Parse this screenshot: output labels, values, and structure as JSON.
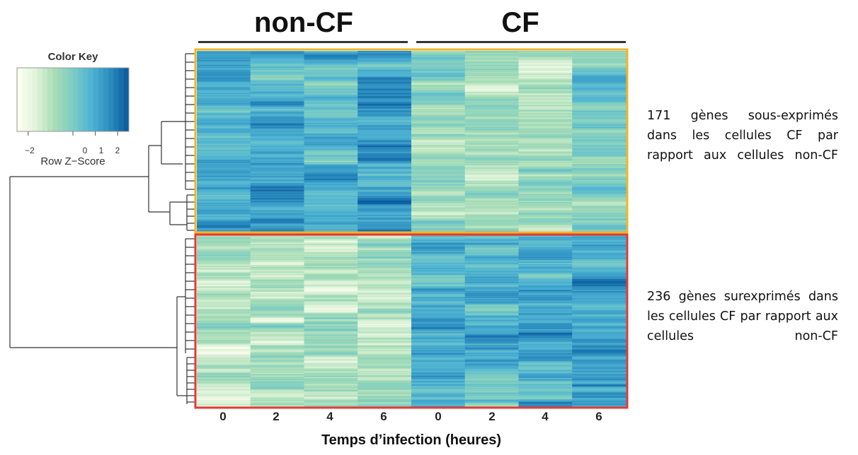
{
  "chart_data": {
    "type": "heatmap",
    "column_groups": [
      {
        "name": "non-CF",
        "columns": [
          "0",
          "2",
          "4",
          "6"
        ]
      },
      {
        "name": "CF",
        "columns": [
          "0",
          "2",
          "4",
          "6"
        ]
      }
    ],
    "xlabel": "Temps d’infection (heures)",
    "x_tick_labels": [
      "0",
      "2",
      "4",
      "6",
      "0",
      "2",
      "4",
      "6"
    ],
    "color_key": {
      "title": "Color Key",
      "label": "Row Z−Score",
      "tick_labels": [
        "−2",
        "0",
        "1",
        "2"
      ],
      "tick_values": [
        -2,
        0,
        1,
        2
      ],
      "range": [
        -2.5,
        2.5
      ],
      "low_color": "#f1f8e6",
      "high_color": "#2b5fa3"
    },
    "clusters": [
      {
        "rows": 171,
        "box_color": "#f0b429",
        "annotation": "171 gènes sous-exprimés dans les cellules CF par rapport aux cellules non-CF",
        "column_mean_z": [
          0.9,
          0.9,
          0.8,
          1.3,
          -0.6,
          -0.6,
          -0.8,
          -0.4
        ]
      },
      {
        "rows": 236,
        "box_color": "#e53935",
        "annotation": "236 gènes surexprimés dans les cellules CF par rapport aux cellules non-CF",
        "column_mean_z": [
          -0.9,
          -1.0,
          -0.8,
          -0.9,
          0.9,
          0.8,
          0.9,
          1.2
        ]
      }
    ],
    "dendrogram": "row"
  },
  "annotations": {
    "top": "171 gènes sous-exprimés dans les cellules CF par rapport aux cellules non-CF",
    "bottom": "236 gènes surexprimés dans les cellules CF par rapport aux cellules non-CF"
  }
}
